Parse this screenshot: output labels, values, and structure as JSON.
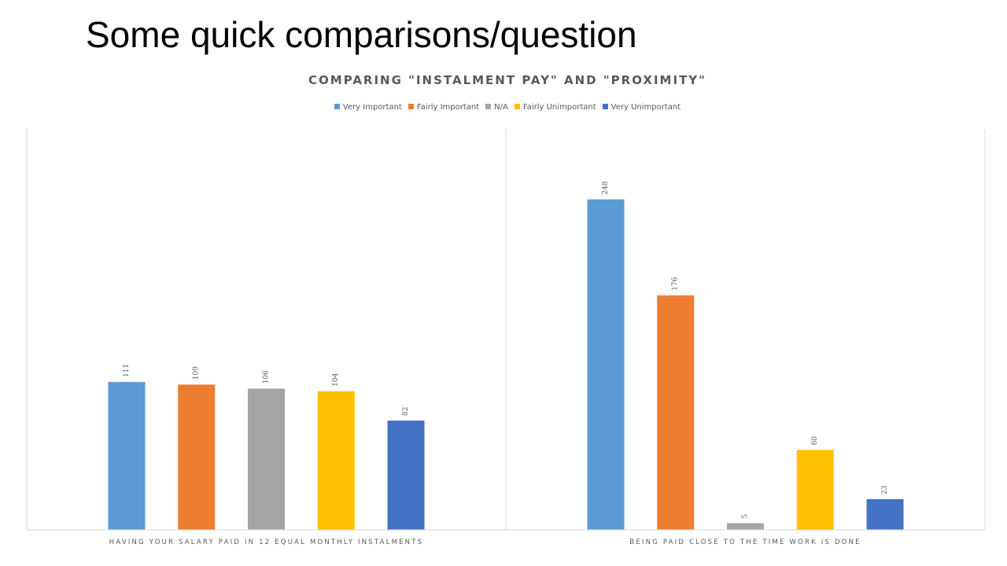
{
  "slide": {
    "title": "Some quick comparisons/question"
  },
  "chart_data": {
    "type": "bar",
    "title": "COMPARING \"INSTALMENT PAY\" AND \"PROXIMITY\"",
    "categories": [
      "HAVING YOUR SALARY PAID IN 12 EQUAL MONTHLY INSTALMENTS",
      "BEING PAID CLOSE TO THE TIME WORK IS DONE"
    ],
    "series": [
      {
        "name": "Very Important",
        "color": "#5B9BD5",
        "values": [
          111,
          248
        ]
      },
      {
        "name": "Fairly Important",
        "color": "#ED7D31",
        "values": [
          109,
          176
        ]
      },
      {
        "name": "N/A",
        "color": "#A5A5A5",
        "values": [
          106,
          5
        ]
      },
      {
        "name": "Fairly Unimportant",
        "color": "#FFC000",
        "values": [
          104,
          60
        ]
      },
      {
        "name": "Very Unimportant",
        "color": "#4472C4",
        "values": [
          82,
          23
        ]
      }
    ],
    "ylim": [
      0,
      300
    ],
    "grid": false,
    "data_labels": true,
    "legend_position": "top"
  }
}
